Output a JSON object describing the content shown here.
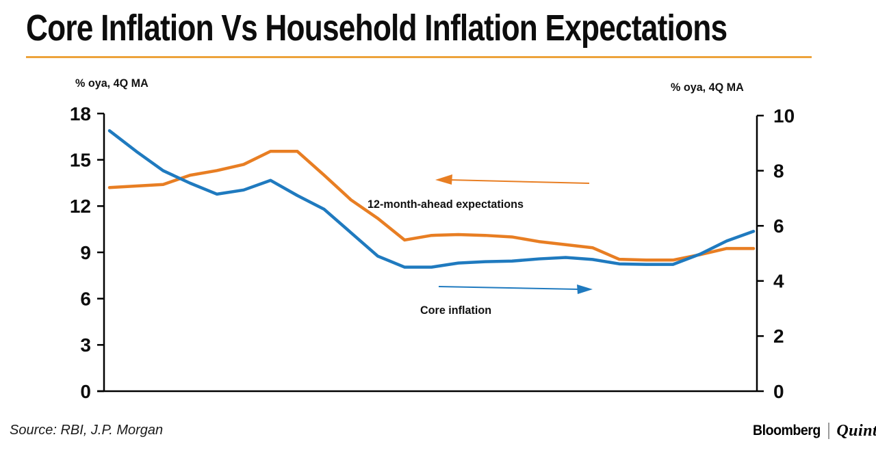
{
  "title": "Core Inflation Vs Household Inflation Expectations",
  "source": "Source: RBI, J.P. Morgan",
  "branding": {
    "bloomberg": "Bloomberg",
    "quint": "Quint"
  },
  "colors": {
    "underline": "#EDA33B",
    "axis": "#000000",
    "expectations": "#E87E23",
    "core": "#1F7ABF"
  },
  "chart_data": {
    "type": "line",
    "title": "Core Inflation Vs Household Inflation Expectations",
    "grid": false,
    "x_axis": {
      "tick_labels_visible": false,
      "note": "time axis, quarterly points, no labels shown"
    },
    "left_axis": {
      "label": "% oya, 4Q MA",
      "range": [
        0,
        18
      ],
      "ticks": [
        0,
        3,
        6,
        9,
        12,
        15,
        18
      ]
    },
    "right_axis": {
      "label": "% oya, 4Q MA",
      "range": [
        0,
        10
      ],
      "ticks": [
        0,
        2,
        4,
        6,
        8,
        10
      ]
    },
    "series": [
      {
        "name": "12-month-ahead expectations",
        "axis": "left",
        "color": "#E87E23",
        "values": [
          13.2,
          13.3,
          13.4,
          14.0,
          14.3,
          14.7,
          15.55,
          15.55,
          14.0,
          12.4,
          11.2,
          9.8,
          10.1,
          10.15,
          10.1,
          10.0,
          9.7,
          9.5,
          9.3,
          8.55,
          8.5,
          8.5,
          8.85,
          9.25,
          9.25
        ]
      },
      {
        "name": "Core inflation",
        "axis": "right",
        "color": "#1F7ABF",
        "values": [
          9.45,
          8.7,
          8.0,
          7.55,
          7.15,
          7.3,
          7.65,
          7.1,
          6.6,
          5.75,
          4.9,
          4.5,
          4.5,
          4.65,
          4.7,
          4.72,
          4.8,
          4.85,
          4.78,
          4.62,
          4.6,
          4.6,
          4.97,
          5.45,
          5.8
        ]
      }
    ],
    "annotations": [
      {
        "text": "12-month-ahead expectations",
        "series": "12-month-ahead expectations",
        "arrow_direction": "left",
        "color": "#E87E23"
      },
      {
        "text": "Core inflation",
        "series": "Core inflation",
        "arrow_direction": "right",
        "color": "#1F7ABF"
      }
    ]
  }
}
